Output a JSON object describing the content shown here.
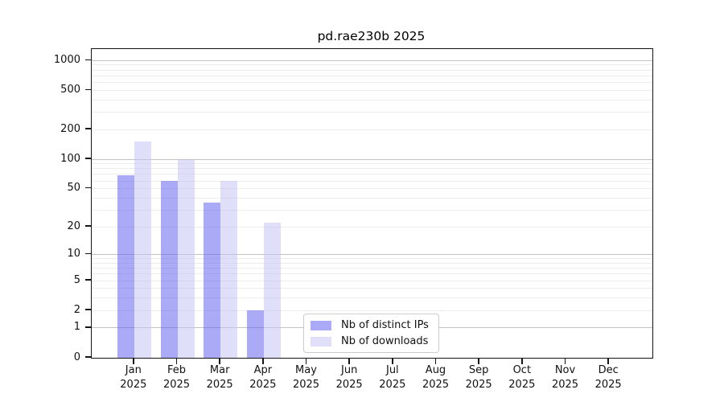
{
  "title": "pd.rae230b 2025",
  "legend": {
    "items": [
      {
        "label": "Nb of distinct IPs",
        "color": "rgba(100,100,240,0.55)"
      },
      {
        "label": "Nb of downloads",
        "color": "rgba(196,196,245,0.55)"
      }
    ]
  },
  "y_axis": {
    "tick_values": [
      0,
      1,
      2,
      5,
      10,
      20,
      50,
      100,
      200,
      500,
      1000
    ],
    "minor_grid_values": [
      2,
      3,
      4,
      5,
      6,
      7,
      8,
      9,
      20,
      30,
      40,
      50,
      60,
      70,
      80,
      90,
      200,
      300,
      400,
      500,
      600,
      700,
      800,
      900
    ],
    "major_grid_values": [
      1,
      10,
      100,
      1000
    ]
  },
  "x_axis": {
    "year": "2025",
    "months": [
      "Jan",
      "Feb",
      "Mar",
      "Apr",
      "May",
      "Jun",
      "Jul",
      "Aug",
      "Sep",
      "Oct",
      "Nov",
      "Dec"
    ]
  },
  "chart_data": {
    "type": "bar",
    "title": "pd.rae230b 2025",
    "categories": [
      "Jan 2025",
      "Feb 2025",
      "Mar 2025",
      "Apr 2025",
      "May 2025",
      "Jun 2025",
      "Jul 2025",
      "Aug 2025",
      "Sep 2025",
      "Oct 2025",
      "Nov 2025",
      "Dec 2025"
    ],
    "series": [
      {
        "name": "Nb of distinct IPs",
        "color": "rgba(100,100,240,0.55)",
        "values": [
          68,
          60,
          36,
          2,
          0,
          0,
          0,
          0,
          0,
          0,
          0,
          0
        ]
      },
      {
        "name": "Nb of downloads",
        "color": "rgba(196,196,245,0.55)",
        "values": [
          152,
          98,
          60,
          22,
          0,
          0,
          0,
          0,
          0,
          0,
          0,
          0
        ]
      }
    ],
    "xlabel": "",
    "ylabel": "",
    "yscale": "log1p",
    "yticks": [
      0,
      1,
      2,
      5,
      10,
      20,
      50,
      100,
      200,
      500,
      1000
    ],
    "ylim": [
      0,
      1300
    ],
    "grid": "horizontal",
    "legend_position": "lower-center"
  }
}
